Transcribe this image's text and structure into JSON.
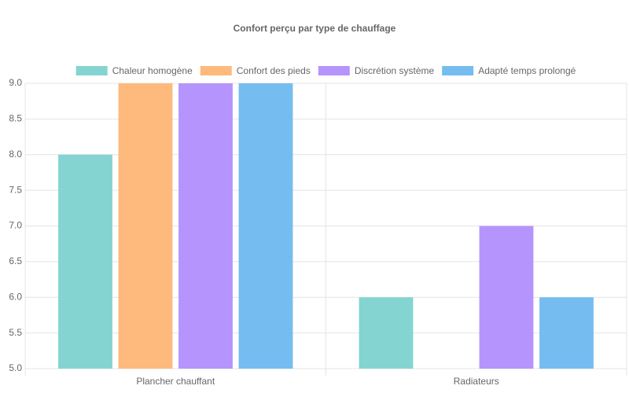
{
  "chart_data": {
    "type": "bar",
    "title": "Confort perçu par type de chauffage",
    "categories": [
      "Plancher chauffant",
      "Radiateurs"
    ],
    "series": [
      {
        "name": "Chaleur homogène",
        "color": "#84d4d2",
        "values": [
          8,
          6
        ]
      },
      {
        "name": "Confort des pieds",
        "color": "#fdba7c",
        "values": [
          9,
          5
        ]
      },
      {
        "name": "Discrétion système",
        "color": "#b694fd",
        "values": [
          9,
          7
        ]
      },
      {
        "name": "Adapté temps prolongé",
        "color": "#75bdf0",
        "values": [
          9,
          6
        ]
      }
    ],
    "ylim": [
      5,
      9
    ],
    "yticks": [
      {
        "value": 5,
        "label": "5.0"
      },
      5.5,
      {
        "value": 6,
        "label": "6.0"
      },
      6.5,
      {
        "value": 7,
        "label": "7.0"
      },
      7.5,
      {
        "value": 8,
        "label": "8.0"
      },
      8.5,
      {
        "value": 9,
        "label": "9.0"
      }
    ],
    "grid": true,
    "legend": "top"
  }
}
